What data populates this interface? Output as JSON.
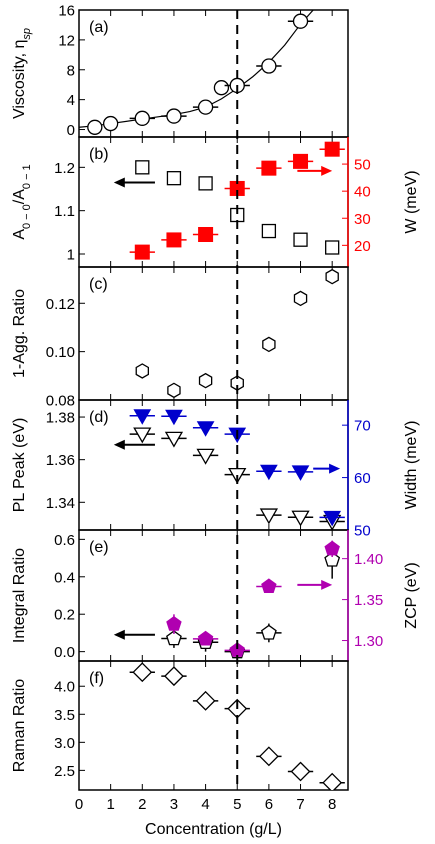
{
  "chart_data": [
    {
      "type": "scatter",
      "panel": "(a)",
      "ylabel": "Viscosity, η",
      "ylabel_sub": "sp",
      "ylim": [
        -1,
        16
      ],
      "yticks": [
        0,
        4,
        8,
        12,
        16
      ],
      "xlim": [
        0,
        8.5
      ],
      "grid": false,
      "series": [
        {
          "marker": "circle",
          "color": "#000000",
          "x": [
            0.5,
            1,
            2,
            3,
            4,
            4.5,
            5,
            6,
            7
          ],
          "y": [
            0.3,
            0.8,
            1.5,
            1.8,
            3.0,
            5.6,
            5.9,
            8.5,
            14.5
          ],
          "xerr": [
            0,
            0,
            0.4,
            0.4,
            0.4,
            0,
            0.4,
            0.4,
            0.4
          ]
        }
      ],
      "fit_line": {
        "x": [
          0,
          0.5,
          1,
          2,
          3,
          3.5,
          4,
          4.5,
          5,
          5.5,
          6,
          6.5,
          7,
          7.4
        ],
        "y": [
          0.3,
          0.5,
          0.8,
          1.4,
          2.0,
          2.4,
          3.0,
          4.1,
          5.5,
          7.1,
          9.0,
          11.3,
          14.1,
          16.0
        ]
      }
    },
    {
      "type": "scatter",
      "panel": "(b)",
      "ylabel": "A",
      "ylabel_sub1": "0 − 0",
      "ylabel_mid": "/A",
      "ylabel_sub2": "0 − 1",
      "ylim": [
        0.97,
        1.27
      ],
      "yticks": [
        1.0,
        1.1,
        1.2
      ],
      "ylabel_right": "W (meV)",
      "ylim_right": [
        12,
        60
      ],
      "yticks_right": [
        20,
        30,
        40,
        50
      ],
      "right_color": "#ff0000",
      "series": [
        {
          "axis": "left",
          "marker": "open-square",
          "color": "#000000",
          "x": [
            2,
            3,
            4,
            5,
            6,
            7,
            8
          ],
          "y": [
            1.2,
            1.175,
            1.163,
            1.09,
            1.053,
            1.033,
            1.015
          ]
        },
        {
          "axis": "right",
          "marker": "filled-square",
          "color": "#ff0000",
          "x": [
            2,
            3,
            4,
            5,
            6,
            7,
            8
          ],
          "y": [
            17.5,
            22,
            24,
            41,
            48.5,
            51,
            55.5
          ],
          "xerr": [
            0.4,
            0.4,
            0.4,
            0.4,
            0.4,
            0.4,
            0.4
          ]
        }
      ],
      "arrows": [
        {
          "direction": "left",
          "axis": "left",
          "x_from": 2.4,
          "x_to": 1.1,
          "y": 1.165
        },
        {
          "direction": "right",
          "axis": "right",
          "x_from": 6.9,
          "x_to": 8.0,
          "y": 47.5
        }
      ]
    },
    {
      "type": "scatter",
      "panel": "(c)",
      "ylabel": "1-Agg. Ratio",
      "ylim": [
        0.08,
        0.135
      ],
      "yticks": [
        0.08,
        0.1,
        0.12
      ],
      "yticklabels": [
        "0.08",
        "0.10",
        "0.12"
      ],
      "series": [
        {
          "marker": "hexagon",
          "color": "#000000",
          "x": [
            2,
            3,
            4,
            5,
            6,
            7,
            8
          ],
          "y": [
            0.092,
            0.084,
            0.088,
            0.087,
            0.103,
            0.122,
            0.131
          ]
        }
      ]
    },
    {
      "type": "scatter",
      "panel": "(d)",
      "ylabel": "PL Peak (eV)",
      "ylim": [
        1.327,
        1.388
      ],
      "yticks": [
        1.34,
        1.36,
        1.38
      ],
      "ylabel_right": "Width (meV)",
      "ylim_right": [
        50,
        74.8
      ],
      "yticks_right": [
        50,
        60,
        70
      ],
      "right_color": "#0000cc",
      "series": [
        {
          "axis": "left",
          "marker": "open-triangle-down",
          "color": "#000000",
          "x": [
            2,
            3,
            4,
            5,
            6,
            7,
            8
          ],
          "y": [
            1.372,
            1.37,
            1.362,
            1.353,
            1.334,
            1.333,
            1.331
          ],
          "xerr": [
            0.4,
            0.4,
            0.4,
            0.4,
            0.4,
            0.4,
            0.4
          ]
        },
        {
          "axis": "right",
          "marker": "filled-triangle-down",
          "color": "#0000cc",
          "x": [
            2,
            3,
            4,
            5,
            6,
            7,
            8
          ],
          "y": [
            71.8,
            71.7,
            69.5,
            68.3,
            61.2,
            61.1,
            52.4
          ],
          "xerr": [
            0.4,
            0.4,
            0.4,
            0.4,
            0.4,
            0.4,
            0.4
          ]
        }
      ],
      "arrows": [
        {
          "direction": "left",
          "axis": "left",
          "x_from": 2.4,
          "x_to": 1.1,
          "y": 1.367
        },
        {
          "direction": "right",
          "axis": "right",
          "x_from": 7.4,
          "x_to": 8.25,
          "y": 61.7
        }
      ]
    },
    {
      "type": "scatter",
      "panel": "(e)",
      "ylabel": "Integral Ratio",
      "ylim": [
        -0.05,
        0.65
      ],
      "yticks": [
        0.0,
        0.2,
        0.4,
        0.6
      ],
      "yticklabels": [
        "0.0",
        "0.2",
        "0.4",
        "0.6"
      ],
      "ylabel_right": "ZCP (eV)",
      "ylim_right": [
        1.275,
        1.435
      ],
      "yticks_right": [
        1.3,
        1.35,
        1.4
      ],
      "yticklabels_right": [
        "1.30",
        "1.35",
        "1.40"
      ],
      "right_color": "#b000b0",
      "series": [
        {
          "axis": "left",
          "marker": "open-pentagon",
          "color": "#000000",
          "x": [
            3,
            4,
            5,
            6,
            8
          ],
          "y": [
            0.07,
            0.05,
            0.0,
            0.1,
            0.49
          ],
          "xerr": [
            0.4,
            0.4,
            0.4,
            0.4,
            0
          ],
          "yerr": [
            0.05,
            0.05,
            0.05,
            0.05,
            0.1
          ]
        },
        {
          "axis": "right",
          "marker": "filled-pentagon",
          "color": "#b000b0",
          "x": [
            3,
            4,
            5,
            6,
            8
          ],
          "y": [
            1.32,
            1.302,
            1.288,
            1.366,
            1.412
          ],
          "xerr": [
            0,
            0.4,
            0.4,
            0.4,
            0
          ],
          "yerr": [
            0.012,
            0.006,
            0.006,
            0.006,
            0.01
          ]
        }
      ],
      "arrows": [
        {
          "direction": "left",
          "axis": "left",
          "x_from": 2.4,
          "x_to": 1.1,
          "y": 0.09
        },
        {
          "direction": "right",
          "axis": "right",
          "x_from": 6.9,
          "x_to": 8.0,
          "y": 1.368
        }
      ]
    },
    {
      "type": "scatter",
      "panel": "(f)",
      "ylabel": "Raman Ratio",
      "ylim": [
        2.15,
        4.45
      ],
      "yticks": [
        2.5,
        3.0,
        3.5,
        4.0
      ],
      "yticklabels": [
        "2.5",
        "3.0",
        "3.5",
        "4.0"
      ],
      "xlabel": "Concentration (g/L)",
      "xlim": [
        0,
        8.5
      ],
      "xticks": [
        0,
        1,
        2,
        3,
        4,
        5,
        6,
        7,
        8
      ],
      "series": [
        {
          "marker": "open-diamond",
          "color": "#000000",
          "x": [
            2,
            3,
            4,
            5,
            6,
            7,
            8
          ],
          "y": [
            4.25,
            4.18,
            3.74,
            3.6,
            2.75,
            2.48,
            2.28
          ],
          "xerr": [
            0.4,
            0.4,
            0.4,
            0.4,
            0.4,
            0.4,
            0.4
          ],
          "yerr": [
            0.1,
            0.1,
            0.06,
            0.16,
            0.12,
            0.06,
            0.06
          ]
        }
      ]
    }
  ],
  "vertical_dashed_line_x": 5
}
